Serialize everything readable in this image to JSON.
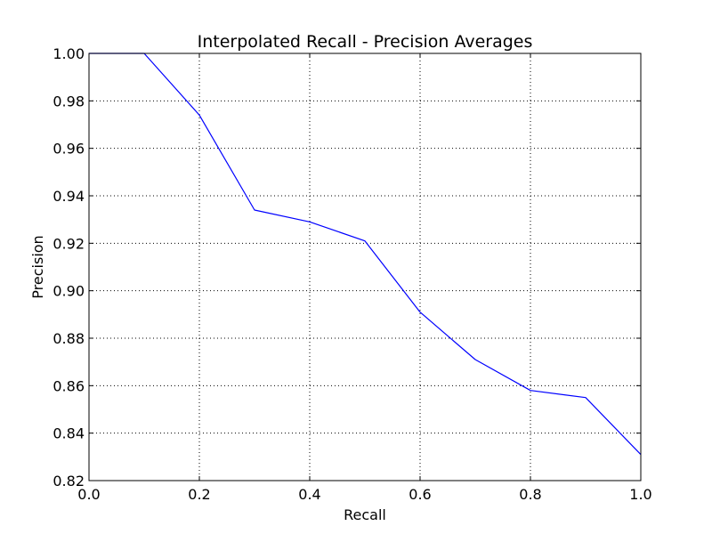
{
  "chart_data": {
    "type": "line",
    "title": "Interpolated Recall - Precision Averages",
    "xlabel": "Recall",
    "ylabel": "Precision",
    "xlim": [
      0.0,
      1.0
    ],
    "ylim": [
      0.82,
      1.0
    ],
    "xticks": [
      "0.0",
      "0.2",
      "0.4",
      "0.6",
      "0.8",
      "1.0"
    ],
    "yticks": [
      "0.82",
      "0.84",
      "0.86",
      "0.88",
      "0.90",
      "0.92",
      "0.94",
      "0.96",
      "0.98",
      "1.00"
    ],
    "grid": true,
    "series": [
      {
        "color": "#0000ff",
        "x": [
          0.0,
          0.1,
          0.2,
          0.3,
          0.4,
          0.5,
          0.6,
          0.7,
          0.8,
          0.9,
          1.0
        ],
        "y": [
          1.0,
          1.0,
          0.974,
          0.934,
          0.929,
          0.921,
          0.891,
          0.871,
          0.858,
          0.855,
          0.831
        ]
      }
    ]
  }
}
